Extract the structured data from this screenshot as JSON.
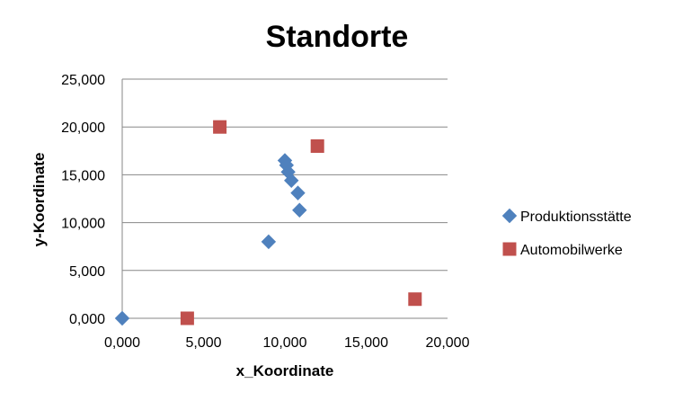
{
  "chart_data": {
    "type": "scatter",
    "title": "Standorte",
    "xlabel": "x_Koordinate",
    "ylabel": "y-Koordinate",
    "xlim": [
      0,
      20000
    ],
    "ylim": [
      0,
      25000
    ],
    "x_ticks": [
      0,
      5000,
      10000,
      15000,
      20000
    ],
    "y_ticks": [
      0,
      5000,
      10000,
      15000,
      20000,
      25000
    ],
    "x_tick_labels": [
      "0,000",
      "5,000",
      "10,000",
      "15,000",
      "20,000"
    ],
    "y_tick_labels": [
      "0,000",
      "5,000",
      "10,000",
      "15,000",
      "20,000",
      "25,000"
    ],
    "grid": "horizontal",
    "legend_position": "right",
    "series": [
      {
        "name": "Produktionsstätte",
        "marker": "diamond",
        "color": "#4f81bd",
        "points": [
          {
            "x": 0,
            "y": 0
          },
          {
            "x": 9000,
            "y": 8000
          },
          {
            "x": 10000,
            "y": 16500
          },
          {
            "x": 10100,
            "y": 16000
          },
          {
            "x": 10200,
            "y": 15300
          },
          {
            "x": 10400,
            "y": 14400
          },
          {
            "x": 10800,
            "y": 13100
          },
          {
            "x": 10900,
            "y": 11300
          }
        ]
      },
      {
        "name": "Automobilwerke",
        "marker": "square",
        "color": "#c0504d",
        "points": [
          {
            "x": 4000,
            "y": 0
          },
          {
            "x": 6000,
            "y": 20000
          },
          {
            "x": 12000,
            "y": 18000
          },
          {
            "x": 18000,
            "y": 2000
          }
        ]
      }
    ]
  }
}
